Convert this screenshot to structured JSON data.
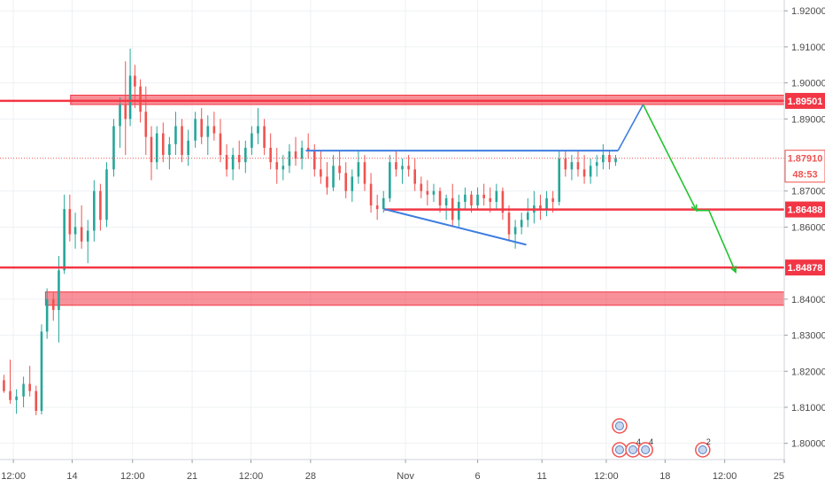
{
  "chart_data": {
    "type": "candlestick",
    "y_axis": {
      "side": "right",
      "range": [
        1.7955,
        1.923
      ],
      "ticks": [
        "1.92000",
        "1.91000",
        "1.90000",
        "1.89000",
        "1.87000",
        "1.86000",
        "1.84000",
        "1.83000",
        "1.82000",
        "1.81000",
        "1.80000"
      ]
    },
    "x_axis": {
      "range": [
        0,
        100
      ],
      "ticks": [
        {
          "label": "12:00",
          "x": 1.7
        },
        {
          "label": "14",
          "x": 9.2
        },
        {
          "label": "12:00",
          "x": 16.9
        },
        {
          "label": "21",
          "x": 24.5
        },
        {
          "label": "12:00",
          "x": 32.0
        },
        {
          "label": "28",
          "x": 39.6
        },
        {
          "label": "Nov",
          "x": 51.7
        },
        {
          "label": "6",
          "x": 60.9
        },
        {
          "label": "11",
          "x": 69.1
        },
        {
          "label": "12:00",
          "x": 77.3
        },
        {
          "label": "18",
          "x": 84.8
        },
        {
          "label": "12:00",
          "x": 92.4
        },
        {
          "label": "25",
          "x": 100.0
        }
      ]
    },
    "grid": true,
    "current_price": {
      "price_label": "1.87910",
      "value": 1.8791,
      "countdown": "48:53"
    },
    "price_tags": [
      {
        "label": "1.89501",
        "value": 1.89501
      },
      {
        "label": "1.86488",
        "value": 1.86488
      },
      {
        "label": "1.84878",
        "value": 1.84878
      }
    ],
    "zones": [
      {
        "x_start": 9.0,
        "y_low": 1.894,
        "y_high": 1.8966,
        "color": "#f23645"
      },
      {
        "x_start": 5.8,
        "y_low": 1.8383,
        "y_high": 1.842,
        "color": "#f23645"
      }
    ],
    "lines": [
      {
        "role": "resistance",
        "x1": 0,
        "x2": 100,
        "y1": 1.89501,
        "y2": 1.89501,
        "color": "#f23645"
      },
      {
        "role": "support",
        "x1": 49.0,
        "x2": 100,
        "y1": 1.86488,
        "y2": 1.86488,
        "color": "#f23645"
      },
      {
        "role": "support",
        "x1": 0,
        "x2": 100,
        "y1": 1.84878,
        "y2": 1.84878,
        "color": "#f23645"
      },
      {
        "role": "neckline",
        "x1": 39.0,
        "x2": 78.8,
        "y1": 1.8812,
        "y2": 1.8812,
        "color": "#3d7de0"
      },
      {
        "role": "lower-trend",
        "x1": 49.0,
        "x2": 67.1,
        "y1": 1.865,
        "y2": 1.8551,
        "color": "#3d7de0"
      }
    ],
    "projections": [
      {
        "color": "#3d7de0",
        "points": [
          [
            78.8,
            1.8812
          ],
          [
            82.0,
            1.894
          ]
        ]
      },
      {
        "color": "#22c32e",
        "points": [
          [
            82.0,
            1.894
          ],
          [
            88.8,
            1.8646
          ],
          [
            90.4,
            1.8646
          ],
          [
            93.8,
            1.8475
          ]
        ]
      }
    ],
    "candle_colors": {
      "up": "#26a69a",
      "down": "#ef5350"
    },
    "candles": [
      [
        0.5,
        1.8175,
        1.819,
        1.814,
        1.8145
      ],
      [
        1.3,
        1.8145,
        1.8232,
        1.811,
        1.812
      ],
      [
        2.1,
        1.812,
        1.815,
        1.8082,
        1.813
      ],
      [
        3.0,
        1.813,
        1.8185,
        1.81,
        1.8165
      ],
      [
        3.8,
        1.8165,
        1.8215,
        1.813,
        1.8145
      ],
      [
        4.6,
        1.8145,
        1.816,
        1.8078,
        1.809
      ],
      [
        5.3,
        1.809,
        1.833,
        1.808,
        1.831
      ],
      [
        6.0,
        1.831,
        1.843,
        1.829,
        1.84
      ],
      [
        6.8,
        1.84,
        1.8418,
        1.834,
        1.837
      ],
      [
        7.5,
        1.837,
        1.852,
        1.828,
        1.848
      ],
      [
        8.2,
        1.848,
        1.869,
        1.847,
        1.865
      ],
      [
        8.9,
        1.865,
        1.869,
        1.856,
        1.858
      ],
      [
        9.6,
        1.858,
        1.864,
        1.854,
        1.86
      ],
      [
        10.4,
        1.86,
        1.866,
        1.854,
        1.856
      ],
      [
        11.2,
        1.856,
        1.862,
        1.85,
        1.859
      ],
      [
        12.0,
        1.859,
        1.873,
        1.856,
        1.87
      ],
      [
        12.8,
        1.87,
        1.872,
        1.859,
        1.862
      ],
      [
        13.6,
        1.862,
        1.878,
        1.86,
        1.876
      ],
      [
        14.5,
        1.876,
        1.89,
        1.874,
        1.888
      ],
      [
        15.3,
        1.888,
        1.896,
        1.882,
        1.894
      ],
      [
        16.0,
        1.894,
        1.906,
        1.88,
        1.89
      ],
      [
        16.6,
        1.89,
        1.9095,
        1.888,
        1.902
      ],
      [
        17.2,
        1.902,
        1.905,
        1.893,
        1.899
      ],
      [
        17.9,
        1.899,
        1.901,
        1.889,
        1.892
      ],
      [
        18.6,
        1.892,
        1.899,
        1.88,
        1.885
      ],
      [
        19.3,
        1.885,
        1.888,
        1.873,
        1.878
      ],
      [
        20.0,
        1.878,
        1.888,
        1.876,
        1.886
      ],
      [
        20.8,
        1.886,
        1.889,
        1.878,
        1.88
      ],
      [
        21.6,
        1.88,
        1.885,
        1.876,
        1.883
      ],
      [
        22.4,
        1.883,
        1.892,
        1.88,
        1.888
      ],
      [
        23.2,
        1.888,
        1.89,
        1.878,
        1.88
      ],
      [
        24.0,
        1.88,
        1.887,
        1.877,
        1.884
      ],
      [
        24.9,
        1.884,
        1.892,
        1.882,
        1.89
      ],
      [
        25.7,
        1.89,
        1.893,
        1.883,
        1.885
      ],
      [
        26.5,
        1.885,
        1.891,
        1.88,
        1.888
      ],
      [
        27.3,
        1.888,
        1.892,
        1.884,
        1.886
      ],
      [
        28.1,
        1.886,
        1.89,
        1.878,
        1.88
      ],
      [
        28.9,
        1.88,
        1.883,
        1.874,
        1.876
      ],
      [
        29.7,
        1.876,
        1.882,
        1.873,
        1.88
      ],
      [
        30.5,
        1.88,
        1.884,
        1.876,
        1.878
      ],
      [
        31.3,
        1.878,
        1.884,
        1.875,
        1.882
      ],
      [
        32.1,
        1.882,
        1.888,
        1.88,
        1.886
      ],
      [
        32.9,
        1.886,
        1.893,
        1.883,
        1.888
      ],
      [
        33.7,
        1.888,
        1.89,
        1.88,
        1.882
      ],
      [
        34.5,
        1.882,
        1.886,
        1.876,
        1.878
      ],
      [
        35.3,
        1.878,
        1.882,
        1.872,
        1.876
      ],
      [
        36.1,
        1.876,
        1.88,
        1.873,
        1.877
      ],
      [
        36.9,
        1.877,
        1.883,
        1.875,
        1.881
      ],
      [
        37.7,
        1.881,
        1.885,
        1.877,
        1.879
      ],
      [
        38.5,
        1.879,
        1.884,
        1.876,
        1.882
      ],
      [
        39.3,
        1.882,
        1.886,
        1.879,
        1.881
      ],
      [
        40.1,
        1.881,
        1.883,
        1.874,
        1.876
      ],
      [
        40.9,
        1.876,
        1.881,
        1.872,
        1.874
      ],
      [
        41.7,
        1.874,
        1.878,
        1.869,
        1.871
      ],
      [
        42.5,
        1.871,
        1.88,
        1.87,
        1.877
      ],
      [
        43.3,
        1.877,
        1.881,
        1.873,
        1.875
      ],
      [
        44.1,
        1.875,
        1.878,
        1.868,
        1.87
      ],
      [
        44.9,
        1.87,
        1.876,
        1.867,
        1.874
      ],
      [
        45.7,
        1.874,
        1.881,
        1.872,
        1.878
      ],
      [
        46.5,
        1.878,
        1.88,
        1.87,
        1.872
      ],
      [
        47.3,
        1.872,
        1.875,
        1.864,
        1.866
      ],
      [
        48.1,
        1.866,
        1.869,
        1.862,
        1.865
      ],
      [
        48.9,
        1.865,
        1.87,
        1.864,
        1.868
      ],
      [
        49.7,
        1.868,
        1.88,
        1.867,
        1.878
      ],
      [
        50.5,
        1.878,
        1.881,
        1.874,
        1.876
      ],
      [
        51.3,
        1.876,
        1.879,
        1.872,
        1.877
      ],
      [
        52.1,
        1.877,
        1.88,
        1.874,
        1.876
      ],
      [
        52.9,
        1.876,
        1.879,
        1.87,
        1.872
      ],
      [
        53.7,
        1.872,
        1.874,
        1.868,
        1.87
      ],
      [
        54.5,
        1.87,
        1.873,
        1.866,
        1.869
      ],
      [
        55.3,
        1.869,
        1.872,
        1.867,
        1.87
      ],
      [
        56.1,
        1.87,
        1.871,
        1.864,
        1.866
      ],
      [
        56.9,
        1.866,
        1.869,
        1.862,
        1.868
      ],
      [
        57.7,
        1.868,
        1.872,
        1.86,
        1.862
      ],
      [
        58.5,
        1.862,
        1.869,
        1.86,
        1.867
      ],
      [
        59.3,
        1.867,
        1.871,
        1.865,
        1.869
      ],
      [
        60.1,
        1.869,
        1.87,
        1.864,
        1.866
      ],
      [
        60.9,
        1.866,
        1.871,
        1.865,
        1.869
      ],
      [
        61.7,
        1.869,
        1.872,
        1.866,
        1.868
      ],
      [
        62.5,
        1.868,
        1.871,
        1.864,
        1.867
      ],
      [
        63.3,
        1.867,
        1.872,
        1.865,
        1.87
      ],
      [
        64.1,
        1.87,
        1.871,
        1.862,
        1.864
      ],
      [
        64.9,
        1.864,
        1.866,
        1.856,
        1.858
      ],
      [
        65.7,
        1.858,
        1.862,
        1.854,
        1.86
      ],
      [
        66.5,
        1.86,
        1.864,
        1.858,
        1.862
      ],
      [
        67.3,
        1.862,
        1.868,
        1.86,
        1.864
      ],
      [
        68.1,
        1.864,
        1.87,
        1.861,
        1.866
      ],
      [
        68.9,
        1.866,
        1.869,
        1.862,
        1.865
      ],
      [
        69.7,
        1.865,
        1.87,
        1.863,
        1.868
      ],
      [
        70.5,
        1.868,
        1.87,
        1.864,
        1.867
      ],
      [
        71.3,
        1.867,
        1.881,
        1.866,
        1.879
      ],
      [
        72.1,
        1.879,
        1.881,
        1.874,
        1.876
      ],
      [
        72.9,
        1.876,
        1.88,
        1.873,
        1.878
      ],
      [
        73.7,
        1.878,
        1.881,
        1.874,
        1.876
      ],
      [
        74.5,
        1.876,
        1.88,
        1.872,
        1.874
      ],
      [
        75.3,
        1.874,
        1.879,
        1.872,
        1.877
      ],
      [
        76.1,
        1.877,
        1.88,
        1.874,
        1.878
      ],
      [
        76.9,
        1.878,
        1.883,
        1.876,
        1.88
      ],
      [
        77.7,
        1.88,
        1.881,
        1.876,
        1.878
      ],
      [
        78.5,
        1.878,
        1.88,
        1.877,
        1.8791
      ]
    ],
    "event_markers": [
      {
        "x": 79.0,
        "label": ""
      },
      {
        "x": 79.0,
        "label": ""
      },
      {
        "x": 80.7,
        "label": "4"
      },
      {
        "x": 82.3,
        "label": "4"
      },
      {
        "x": 89.6,
        "label": "2"
      }
    ]
  }
}
